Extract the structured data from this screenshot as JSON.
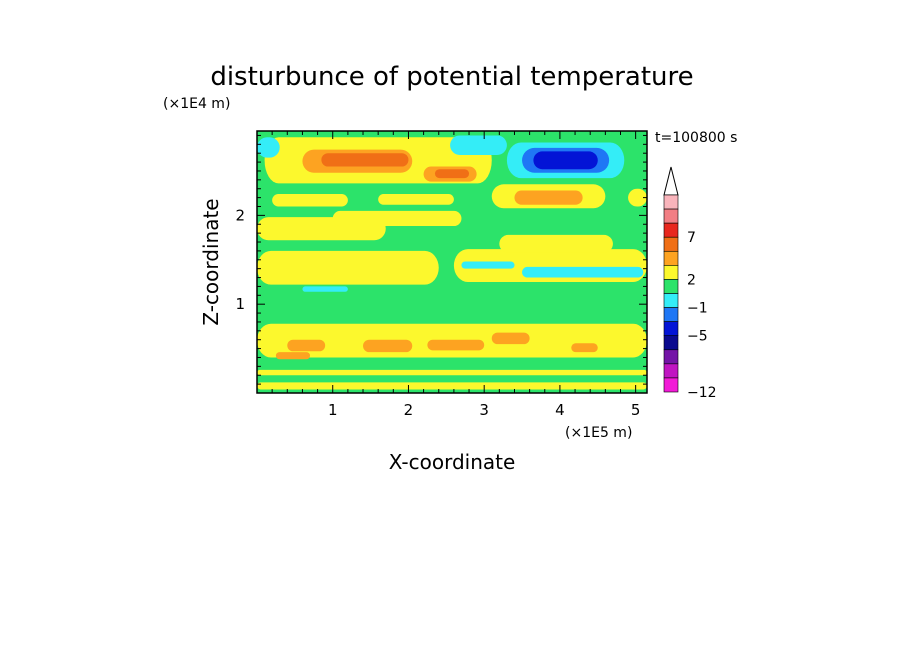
{
  "chart_data": {
    "type": "heatmap",
    "title": "disturbunce of potential temperature",
    "time_label": "t=100800 s",
    "xlabel": "X-coordinate",
    "ylabel": "Z-coordinate",
    "x_scale_label": "(×1E5 m)",
    "y_scale_label": "(×1E4 m)",
    "xlim": [
      0,
      5.15
    ],
    "ylim": [
      0,
      2.95
    ],
    "xticks": [
      "1",
      "2",
      "3",
      "4",
      "5"
    ],
    "xtick_values": [
      1,
      2,
      3,
      4,
      5
    ],
    "yticks": [
      "1",
      "2"
    ],
    "ytick_values": [
      1,
      2
    ],
    "colorbar": {
      "labels": [
        "7",
        "2",
        "−1",
        "−5",
        "−12"
      ],
      "label_values": [
        7,
        2,
        -1,
        -5,
        -12
      ],
      "colors": [
        "#f9b4bb",
        "#f27e84",
        "#e8271e",
        "#f06f16",
        "#fda321",
        "#fcf82d",
        "#2ce36a",
        "#34edf7",
        "#1f77f5",
        "#0314d6",
        "#0b0a8f",
        "#7414a7",
        "#c015c2",
        "#f21ad7"
      ]
    },
    "background_color": "#2ce36a",
    "bands": [
      {
        "x": [
          0,
          5.15
        ],
        "y": [
          0.04,
          0.12
        ],
        "color": "#fcf82d"
      },
      {
        "x": [
          0,
          5.15
        ],
        "y": [
          0.2,
          0.26
        ],
        "color": "#fcf82d"
      },
      {
        "x": [
          0,
          5.15
        ],
        "y": [
          0.28,
          0.38
        ],
        "color": "#2ce36a"
      },
      {
        "x": [
          0,
          5.15
        ],
        "y": [
          0.4,
          0.78
        ],
        "color": "#fcf82d"
      },
      {
        "x": [
          0.4,
          0.9
        ],
        "y": [
          0.47,
          0.6
        ],
        "color": "#fda321"
      },
      {
        "x": [
          1.4,
          2.05
        ],
        "y": [
          0.46,
          0.6
        ],
        "color": "#fda321"
      },
      {
        "x": [
          2.25,
          3.0
        ],
        "y": [
          0.48,
          0.6
        ],
        "color": "#fda321"
      },
      {
        "x": [
          3.1,
          3.6
        ],
        "y": [
          0.55,
          0.68
        ],
        "color": "#fda321"
      },
      {
        "x": [
          4.15,
          4.5
        ],
        "y": [
          0.46,
          0.56
        ],
        "color": "#fda321"
      },
      {
        "x": [
          0.25,
          0.7
        ],
        "y": [
          0.38,
          0.46
        ],
        "color": "#fda321"
      },
      {
        "x": [
          0,
          5.15
        ],
        "y": [
          0.8,
          1.12
        ],
        "color": "#2ce36a"
      },
      {
        "x": [
          0,
          2.4
        ],
        "y": [
          1.22,
          1.6
        ],
        "color": "#fcf82d"
      },
      {
        "x": [
          2.6,
          5.15
        ],
        "y": [
          1.25,
          1.62
        ],
        "color": "#fcf82d"
      },
      {
        "x": [
          3.5,
          5.1
        ],
        "y": [
          1.3,
          1.42
        ],
        "color": "#34edf7"
      },
      {
        "x": [
          2.7,
          3.4
        ],
        "y": [
          1.4,
          1.48
        ],
        "color": "#34edf7"
      },
      {
        "x": [
          0.6,
          1.2
        ],
        "y": [
          1.14,
          1.2
        ],
        "color": "#34edf7"
      },
      {
        "x": [
          0,
          1.7
        ],
        "y": [
          1.72,
          1.98
        ],
        "color": "#fcf82d"
      },
      {
        "x": [
          1.0,
          2.7
        ],
        "y": [
          1.88,
          2.05
        ],
        "color": "#fcf82d"
      },
      {
        "x": [
          3.2,
          4.7
        ],
        "y": [
          1.58,
          1.78
        ],
        "color": "#fcf82d"
      },
      {
        "x": [
          0.2,
          1.2
        ],
        "y": [
          2.1,
          2.24
        ],
        "color": "#fcf82d"
      },
      {
        "x": [
          1.6,
          2.6
        ],
        "y": [
          2.12,
          2.24
        ],
        "color": "#fcf82d"
      },
      {
        "x": [
          3.1,
          4.6
        ],
        "y": [
          2.08,
          2.35
        ],
        "color": "#fcf82d"
      },
      {
        "x": [
          3.4,
          4.3
        ],
        "y": [
          2.12,
          2.28
        ],
        "color": "#fda321"
      },
      {
        "x": [
          0.1,
          3.1
        ],
        "y": [
          2.36,
          2.88
        ],
        "color": "#fcf82d"
      },
      {
        "x": [
          0.6,
          2.05
        ],
        "y": [
          2.48,
          2.74
        ],
        "color": "#fda321"
      },
      {
        "x": [
          0.85,
          2.0
        ],
        "y": [
          2.55,
          2.7
        ],
        "color": "#f06f16"
      },
      {
        "x": [
          2.2,
          2.9
        ],
        "y": [
          2.38,
          2.55
        ],
        "color": "#fda321"
      },
      {
        "x": [
          2.35,
          2.8
        ],
        "y": [
          2.42,
          2.52
        ],
        "color": "#f06f16"
      },
      {
        "x": [
          3.3,
          4.85
        ],
        "y": [
          2.42,
          2.82
        ],
        "color": "#34edf7"
      },
      {
        "x": [
          3.5,
          4.65
        ],
        "y": [
          2.48,
          2.76
        ],
        "color": "#1f77f5"
      },
      {
        "x": [
          3.65,
          4.5
        ],
        "y": [
          2.52,
          2.72
        ],
        "color": "#0314d6"
      },
      {
        "x": [
          0,
          0.3
        ],
        "y": [
          2.65,
          2.88
        ],
        "color": "#34edf7"
      },
      {
        "x": [
          2.55,
          3.3
        ],
        "y": [
          2.68,
          2.9
        ],
        "color": "#34edf7"
      },
      {
        "x": [
          4.9,
          5.15
        ],
        "y": [
          2.1,
          2.3
        ],
        "color": "#fcf82d"
      }
    ]
  }
}
